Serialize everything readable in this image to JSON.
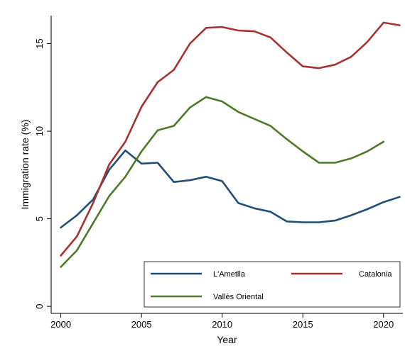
{
  "chart_data": {
    "type": "line",
    "xlabel": "Year",
    "ylabel": "Immigration rate (%)",
    "xlim": [
      1999.4,
      2021.2
    ],
    "ylim": [
      -0.4,
      16.6
    ],
    "x_ticks": [
      2000,
      2005,
      2010,
      2015,
      2020
    ],
    "y_ticks": [
      0,
      5,
      10,
      15
    ],
    "grid": false,
    "legend_position": "bottom-right",
    "series": [
      {
        "name": "L'Ametlla",
        "color": "#1f4e79",
        "x": [
          2000,
          2001,
          2002,
          2003,
          2004,
          2005,
          2006,
          2007,
          2008,
          2009,
          2010,
          2011,
          2012,
          2013,
          2014,
          2015,
          2016,
          2017,
          2018,
          2019,
          2020,
          2021
        ],
        "values": [
          4.5,
          5.2,
          6.1,
          7.8,
          8.9,
          8.15,
          8.2,
          7.1,
          7.2,
          7.4,
          7.15,
          5.9,
          5.6,
          5.4,
          4.85,
          4.8,
          4.8,
          4.9,
          5.2,
          5.55,
          5.95,
          6.25
        ]
      },
      {
        "name": "Catalonia",
        "color": "#a83232",
        "x": [
          2000,
          2001,
          2002,
          2003,
          2004,
          2005,
          2006,
          2007,
          2008,
          2009,
          2010,
          2011,
          2012,
          2013,
          2014,
          2015,
          2016,
          2017,
          2018,
          2019,
          2020,
          2021
        ],
        "values": [
          2.9,
          4.0,
          5.9,
          8.1,
          9.4,
          11.4,
          12.8,
          13.5,
          15.0,
          15.9,
          15.95,
          15.75,
          15.7,
          15.35,
          14.5,
          13.7,
          13.6,
          13.8,
          14.25,
          15.1,
          16.2,
          16.05
        ]
      },
      {
        "name": "Vallès Oriental",
        "color": "#4e7a2a",
        "x": [
          2000,
          2001,
          2002,
          2003,
          2004,
          2005,
          2006,
          2007,
          2008,
          2009,
          2010,
          2011,
          2012,
          2013,
          2014,
          2015,
          2016,
          2017,
          2018,
          2019,
          2020
        ],
        "values": [
          2.25,
          3.2,
          4.75,
          6.3,
          7.4,
          8.85,
          10.05,
          10.3,
          11.35,
          11.95,
          11.7,
          11.1,
          10.7,
          10.3,
          9.55,
          8.85,
          8.2,
          8.2,
          8.45,
          8.85,
          9.4
        ]
      }
    ]
  }
}
